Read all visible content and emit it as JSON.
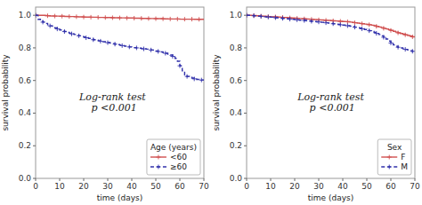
{
  "chart_data": [
    {
      "type": "step",
      "xlabel": "time (days)",
      "ylabel": "survival probability",
      "xlim": [
        0,
        70
      ],
      "ylim": [
        0.0,
        1.05
      ],
      "xticks": [
        0,
        10,
        20,
        30,
        40,
        50,
        60,
        70
      ],
      "yticks": [
        {
          "value": 0.0,
          "label": "0.0"
        },
        0.2,
        0.4,
        0.6,
        0.8,
        {
          "value": 1.0,
          "label": "1.0"
        }
      ],
      "annotations": [
        {
          "text": "Log-rank test\n p <0.001",
          "x": 32,
          "y": 0.47
        }
      ],
      "legend": "lower right",
      "legend_title": "Age (years)",
      "grid": false,
      "series": [
        {
          "name": "<60",
          "color": "#d05050",
          "line_style": "solid",
          "marker": "+",
          "x": [
            0,
            2,
            4,
            5,
            6,
            7,
            8,
            9,
            10,
            11,
            12,
            13,
            14,
            15,
            16,
            17,
            18,
            19,
            20,
            21,
            22,
            23,
            24,
            25,
            26,
            27,
            28,
            29,
            30,
            31,
            32,
            33,
            34,
            35,
            36,
            37,
            38,
            39,
            40,
            41,
            42,
            43,
            44,
            45,
            46,
            47,
            48,
            49,
            50,
            51,
            52,
            53,
            54,
            55,
            56,
            57,
            58,
            59,
            60,
            61,
            62,
            63,
            64,
            65,
            66,
            67,
            68,
            69,
            70
          ],
          "values": [
            1.0,
            1.0,
            0.998,
            0.997,
            0.996,
            0.996,
            0.995,
            0.995,
            0.994,
            0.994,
            0.993,
            0.993,
            0.992,
            0.992,
            0.991,
            0.991,
            0.99,
            0.99,
            0.989,
            0.989,
            0.989,
            0.988,
            0.988,
            0.988,
            0.987,
            0.987,
            0.987,
            0.986,
            0.986,
            0.986,
            0.985,
            0.985,
            0.985,
            0.984,
            0.984,
            0.984,
            0.983,
            0.983,
            0.983,
            0.982,
            0.982,
            0.982,
            0.981,
            0.981,
            0.981,
            0.98,
            0.98,
            0.98,
            0.979,
            0.979,
            0.979,
            0.978,
            0.978,
            0.977,
            0.977,
            0.977,
            0.977,
            0.977,
            0.976,
            0.976,
            0.976,
            0.976,
            0.976,
            0.976,
            0.975,
            0.975,
            0.975,
            0.975,
            0.975
          ]
        },
        {
          "name": "≥60",
          "color": "#3030aa",
          "line_style": "dashed",
          "marker": "+",
          "x": [
            0,
            1,
            2,
            3,
            4,
            5,
            6,
            7,
            8,
            9,
            10,
            11,
            12,
            13,
            14,
            15,
            16,
            17,
            18,
            19,
            20,
            21,
            22,
            23,
            24,
            25,
            26,
            27,
            28,
            29,
            30,
            31,
            32,
            33,
            34,
            35,
            36,
            37,
            38,
            39,
            40,
            41,
            42,
            43,
            44,
            45,
            46,
            47,
            48,
            49,
            50,
            51,
            52,
            53,
            54,
            55,
            56,
            57,
            58,
            59,
            60,
            61,
            62,
            63,
            64,
            65,
            66,
            67,
            68,
            69,
            70
          ],
          "values": [
            1.0,
            0.975,
            0.965,
            0.958,
            0.95,
            0.942,
            0.935,
            0.928,
            0.922,
            0.916,
            0.91,
            0.905,
            0.9,
            0.895,
            0.89,
            0.886,
            0.882,
            0.878,
            0.874,
            0.87,
            0.866,
            0.862,
            0.858,
            0.854,
            0.85,
            0.847,
            0.844,
            0.841,
            0.838,
            0.835,
            0.832,
            0.829,
            0.826,
            0.823,
            0.82,
            0.817,
            0.814,
            0.811,
            0.808,
            0.806,
            0.804,
            0.802,
            0.8,
            0.798,
            0.796,
            0.794,
            0.792,
            0.79,
            0.787,
            0.784,
            0.781,
            0.778,
            0.775,
            0.771,
            0.767,
            0.762,
            0.756,
            0.748,
            0.736,
            0.718,
            0.69,
            0.66,
            0.635,
            0.625,
            0.62,
            0.615,
            0.61,
            0.607,
            0.605,
            0.603,
            0.6
          ]
        }
      ]
    },
    {
      "type": "step",
      "xlabel": "time (days)",
      "ylabel": "survival probability",
      "xlim": [
        0,
        70
      ],
      "ylim": [
        0.0,
        1.05
      ],
      "xticks": [
        0,
        10,
        20,
        30,
        40,
        50,
        60,
        70
      ],
      "yticks": [
        {
          "value": 0.0,
          "label": "0.0"
        },
        0.2,
        0.4,
        0.6,
        0.8,
        {
          "value": 1.0,
          "label": "1.0"
        }
      ],
      "annotations": [
        {
          "text": "Log-rank test\n p <0.001",
          "x": 35,
          "y": 0.47
        }
      ],
      "legend": "lower right",
      "legend_title": "Sex",
      "grid": false,
      "series": [
        {
          "name": "F",
          "color": "#d05050",
          "line_style": "solid",
          "marker": "+",
          "x": [
            0,
            1,
            2,
            3,
            4,
            5,
            6,
            7,
            8,
            9,
            10,
            11,
            12,
            13,
            14,
            15,
            16,
            17,
            18,
            19,
            20,
            21,
            22,
            23,
            24,
            25,
            26,
            27,
            28,
            29,
            30,
            31,
            32,
            33,
            34,
            35,
            36,
            37,
            38,
            39,
            40,
            41,
            42,
            43,
            44,
            45,
            46,
            47,
            48,
            49,
            50,
            51,
            52,
            53,
            54,
            55,
            56,
            57,
            58,
            59,
            60,
            61,
            62,
            63,
            64,
            65,
            66,
            67,
            68,
            69,
            70
          ],
          "values": [
            1.0,
            1.0,
            0.999,
            0.998,
            0.997,
            0.996,
            0.995,
            0.994,
            0.993,
            0.992,
            0.991,
            0.99,
            0.99,
            0.989,
            0.988,
            0.987,
            0.986,
            0.985,
            0.984,
            0.983,
            0.982,
            0.981,
            0.98,
            0.979,
            0.978,
            0.977,
            0.976,
            0.975,
            0.974,
            0.973,
            0.972,
            0.971,
            0.97,
            0.969,
            0.968,
            0.967,
            0.966,
            0.965,
            0.964,
            0.963,
            0.962,
            0.961,
            0.96,
            0.958,
            0.956,
            0.954,
            0.952,
            0.95,
            0.948,
            0.946,
            0.944,
            0.942,
            0.939,
            0.936,
            0.932,
            0.928,
            0.924,
            0.92,
            0.916,
            0.912,
            0.907,
            0.902,
            0.897,
            0.892,
            0.888,
            0.884,
            0.88,
            0.876,
            0.872,
            0.868,
            0.864
          ]
        },
        {
          "name": "M",
          "color": "#3030aa",
          "line_style": "dashed",
          "marker": "+",
          "x": [
            0,
            1,
            2,
            3,
            4,
            5,
            6,
            7,
            8,
            9,
            10,
            11,
            12,
            13,
            14,
            15,
            16,
            17,
            18,
            19,
            20,
            21,
            22,
            23,
            24,
            25,
            26,
            27,
            28,
            29,
            30,
            31,
            32,
            33,
            34,
            35,
            36,
            37,
            38,
            39,
            40,
            41,
            42,
            43,
            44,
            45,
            46,
            47,
            48,
            49,
            50,
            51,
            52,
            53,
            54,
            55,
            56,
            57,
            58,
            59,
            60,
            61,
            62,
            63,
            64,
            65,
            66,
            67,
            68,
            69,
            70
          ],
          "values": [
            1.0,
            1.0,
            0.999,
            0.997,
            0.996,
            0.994,
            0.993,
            0.991,
            0.99,
            0.989,
            0.988,
            0.987,
            0.985,
            0.984,
            0.982,
            0.981,
            0.979,
            0.978,
            0.976,
            0.975,
            0.973,
            0.972,
            0.97,
            0.969,
            0.968,
            0.966,
            0.965,
            0.963,
            0.962,
            0.96,
            0.959,
            0.957,
            0.956,
            0.954,
            0.952,
            0.95,
            0.948,
            0.946,
            0.944,
            0.942,
            0.94,
            0.938,
            0.936,
            0.933,
            0.93,
            0.927,
            0.924,
            0.921,
            0.917,
            0.913,
            0.909,
            0.905,
            0.9,
            0.895,
            0.889,
            0.882,
            0.874,
            0.865,
            0.854,
            0.842,
            0.83,
            0.818,
            0.81,
            0.804,
            0.8,
            0.796,
            0.791,
            0.787,
            0.783,
            0.779,
            0.776
          ]
        }
      ]
    }
  ]
}
